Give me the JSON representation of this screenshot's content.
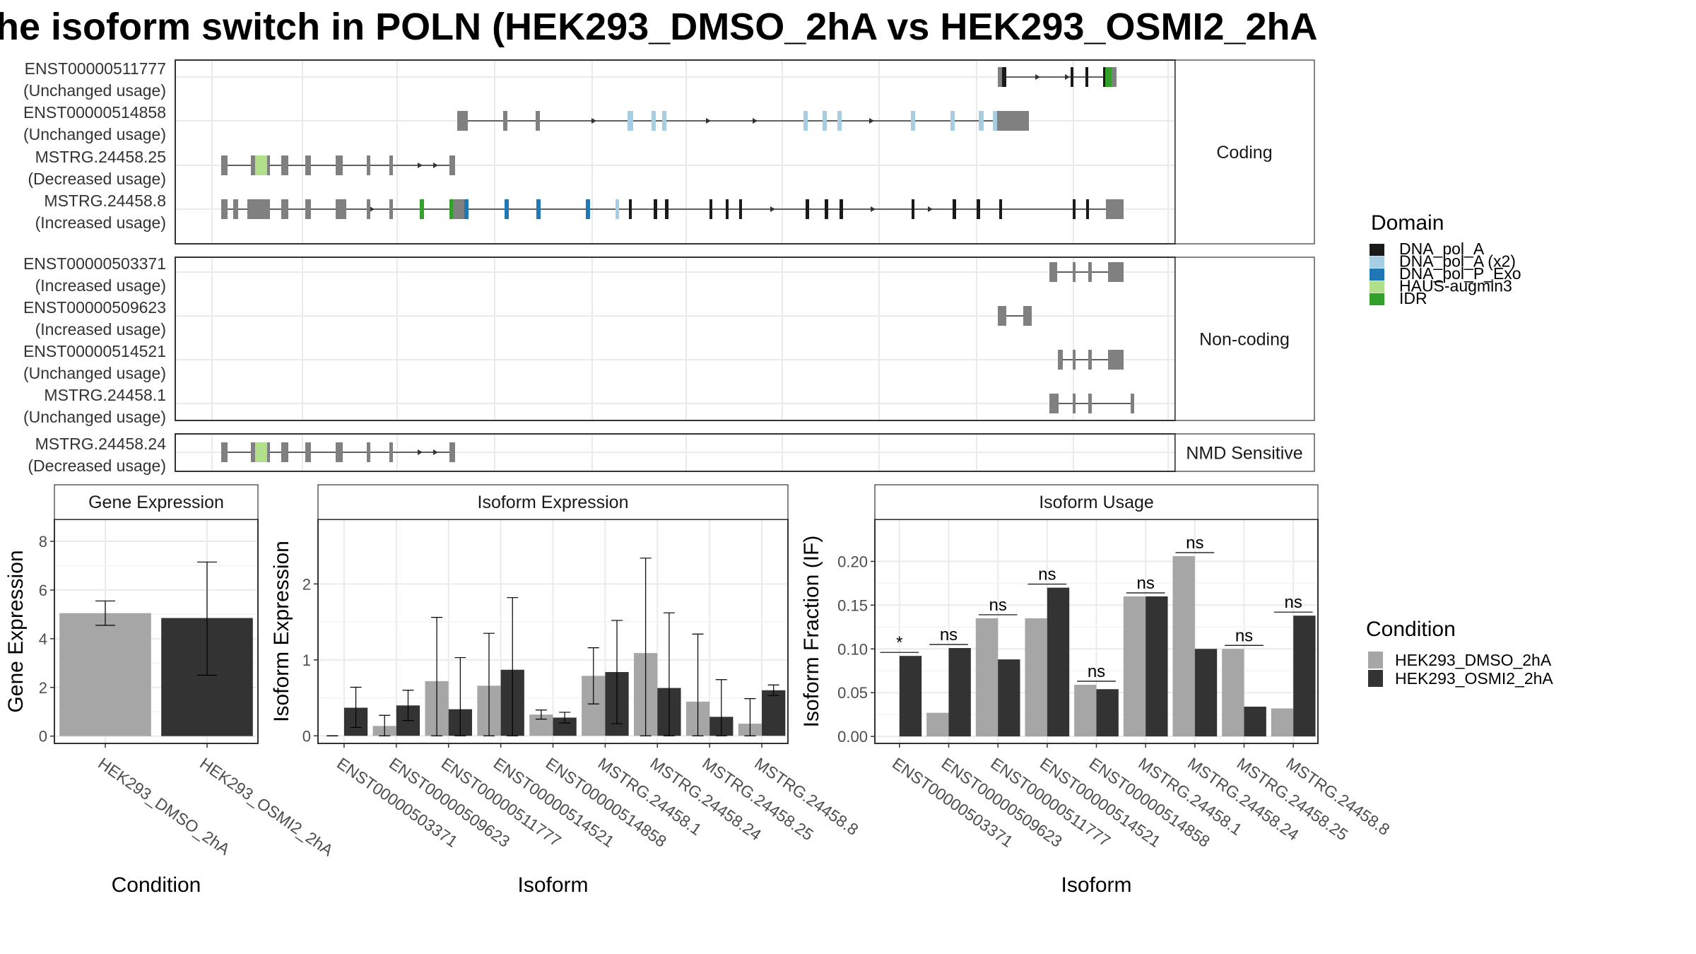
{
  "title": "he isoform switch in POLN (HEK293_DMSO_2hA vs HEK293_OSMI2_2hA",
  "colors": {
    "DNA_pol_A": "#1a1a1a",
    "DNA_pol_A (x2)": "#a6cee3",
    "DNA_pol_P_Exo": "#1f78b4",
    "HAUS-augmin3": "#b2df8a",
    "IDR": "#33a02c",
    "noncoding_exon": "#808080",
    "dmso": "#a6a6a6",
    "osmi": "#333333"
  },
  "structure": {
    "facets": [
      {
        "label": "Coding",
        "isoforms": [
          {
            "id": "ENST00000511777",
            "usage": "(Unchanged usage)"
          },
          {
            "id": "ENST00000514858",
            "usage": "(Unchanged usage)"
          },
          {
            "id": "MSTRG.24458.25",
            "usage": "(Decreased usage)"
          },
          {
            "id": "MSTRG.24458.8",
            "usage": "(Increased usage)"
          }
        ]
      },
      {
        "label": "Non-coding",
        "isoforms": [
          {
            "id": "ENST00000503371",
            "usage": "(Increased usage)"
          },
          {
            "id": "ENST00000509623",
            "usage": "(Increased usage)"
          },
          {
            "id": "ENST00000514521",
            "usage": "(Unchanged usage)"
          },
          {
            "id": "MSTRG.24458.1",
            "usage": "(Unchanged usage)"
          }
        ]
      },
      {
        "label": "NMD Sensitive",
        "isoforms": [
          {
            "id": "MSTRG.24458.24",
            "usage": "(Decreased usage)"
          }
        ]
      }
    ],
    "domain_legend_title": "Domain",
    "domains": [
      "DNA_pol_A",
      "DNA_pol_A (x2)",
      "DNA_pol_P_Exo",
      "HAUS-augmin3",
      "IDR"
    ]
  },
  "chart_data": [
    {
      "type": "bar",
      "title": "Gene Expression",
      "xlabel": "Condition",
      "ylabel": "Gene Expression",
      "categories": [
        "HEK293_DMSO_2hA",
        "HEK293_OSMI2_2hA"
      ],
      "values": [
        5.05,
        4.85
      ],
      "error_low": [
        4.55,
        2.5
      ],
      "error_high": [
        5.55,
        7.15
      ],
      "ylim": [
        -0.3,
        8.9
      ],
      "yticks": [
        "0",
        "2",
        "4",
        "6",
        "8"
      ]
    },
    {
      "type": "bar",
      "title": "Isoform Expression",
      "xlabel": "Isoform",
      "ylabel": "Isoform Expression",
      "categories": [
        "ENST00000503371",
        "ENST00000509623",
        "ENST00000511777",
        "ENST00000514521",
        "ENST00000514858",
        "MSTRG.24458.1",
        "MSTRG.24458.24",
        "MSTRG.24458.25",
        "MSTRG.24458.8"
      ],
      "series": [
        {
          "name": "HEK293_DMSO_2hA",
          "values": [
            0.0,
            0.13,
            0.72,
            0.66,
            0.28,
            0.79,
            1.09,
            0.45,
            0.16
          ],
          "error_low": [
            0.0,
            0.0,
            0.0,
            0.0,
            0.22,
            0.42,
            0.0,
            0.0,
            0.0
          ],
          "error_high": [
            0.0,
            0.27,
            1.56,
            1.35,
            0.34,
            1.16,
            2.34,
            1.34,
            0.49
          ]
        },
        {
          "name": "HEK293_OSMI2_2hA",
          "values": [
            0.37,
            0.4,
            0.35,
            0.87,
            0.24,
            0.84,
            0.63,
            0.25,
            0.6
          ],
          "error_low": [
            0.11,
            0.2,
            0.0,
            0.0,
            0.17,
            0.16,
            0.0,
            0.0,
            0.53
          ],
          "error_high": [
            0.64,
            0.6,
            1.03,
            1.82,
            0.31,
            1.52,
            1.62,
            0.74,
            0.67
          ]
        }
      ],
      "ylim": [
        -0.1,
        2.85
      ],
      "yticks": [
        "0",
        "1",
        "2"
      ]
    },
    {
      "type": "bar",
      "title": "Isoform Usage",
      "xlabel": "Isoform",
      "ylabel": "Isoform Fraction (IF)",
      "categories": [
        "ENST00000503371",
        "ENST00000509623",
        "ENST00000511777",
        "ENST00000514521",
        "ENST00000514858",
        "MSTRG.24458.1",
        "MSTRG.24458.24",
        "MSTRG.24458.25",
        "MSTRG.24458.8"
      ],
      "series": [
        {
          "name": "HEK293_DMSO_2hA",
          "values": [
            0.0,
            0.027,
            0.135,
            0.135,
            0.059,
            0.16,
            0.206,
            0.1,
            0.032
          ]
        },
        {
          "name": "HEK293_OSMI2_2hA",
          "values": [
            0.092,
            0.101,
            0.088,
            0.17,
            0.054,
            0.16,
            0.1,
            0.034,
            0.138
          ]
        }
      ],
      "significance": [
        "*",
        "ns",
        "ns",
        "ns",
        "ns",
        "ns",
        "ns",
        "ns",
        "ns"
      ],
      "ylim": [
        -0.008,
        0.248
      ],
      "yticks": [
        "0.00",
        "0.05",
        "0.10",
        "0.15",
        "0.20"
      ]
    }
  ],
  "condition_legend_title": "Condition",
  "conditions": [
    "HEK293_DMSO_2hA",
    "HEK293_OSMI2_2hA"
  ]
}
